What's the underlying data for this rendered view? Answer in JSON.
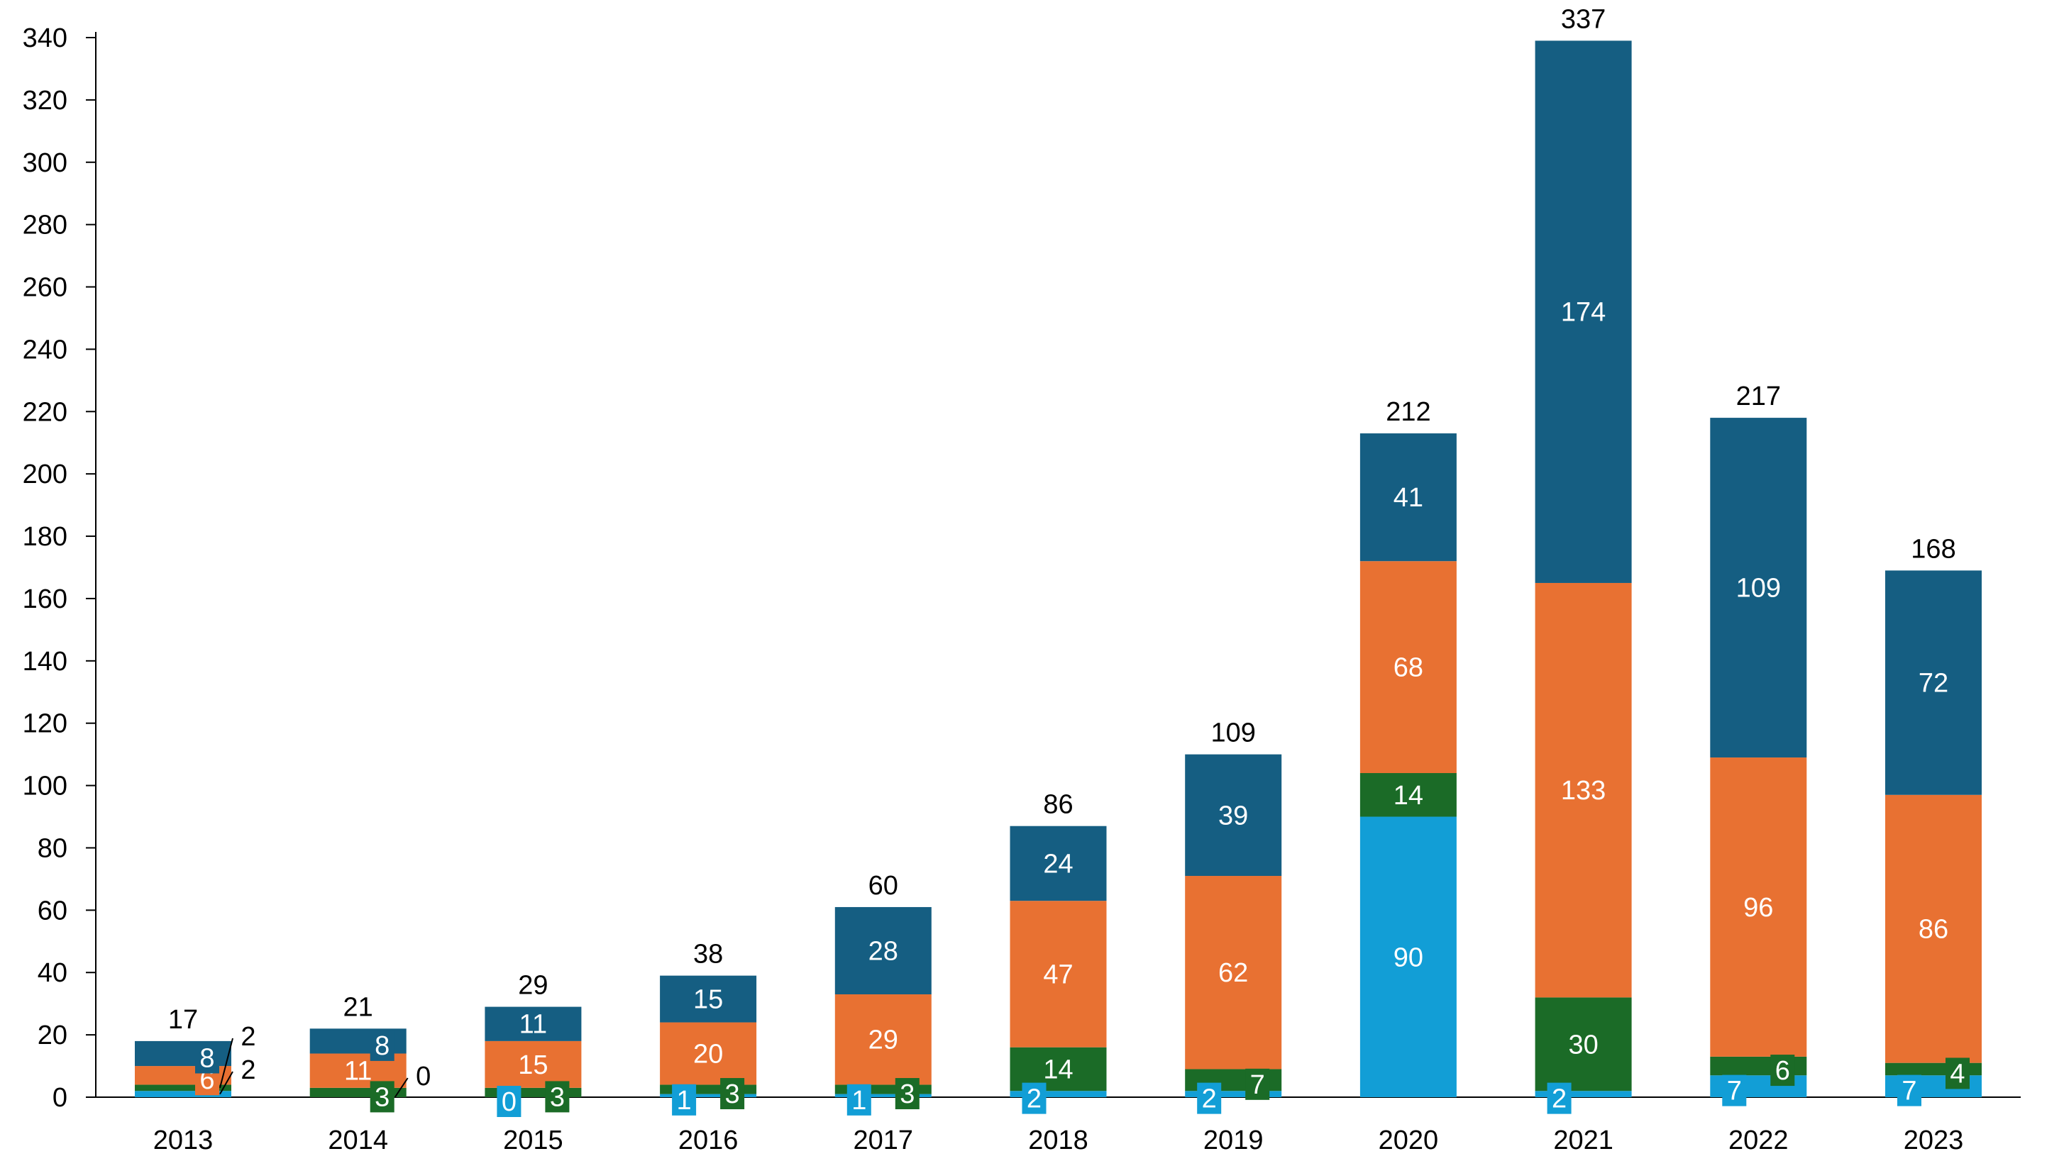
{
  "chart_data": {
    "type": "bar",
    "stacked": true,
    "title": "",
    "xlabel": "",
    "ylabel": "",
    "legend": "none",
    "grid": false,
    "categories": [
      "2013",
      "2014",
      "2015",
      "2016",
      "2017",
      "2018",
      "2019",
      "2020",
      "2021",
      "2022",
      "2023"
    ],
    "ylim": [
      0,
      340
    ],
    "yticks": [
      "0",
      "20",
      "40",
      "60",
      "80",
      "100",
      "120",
      "140",
      "160",
      "180",
      "200",
      "220",
      "240",
      "260",
      "280",
      "300",
      "320",
      "340"
    ],
    "ytick_values": [
      0,
      20,
      40,
      60,
      80,
      100,
      120,
      140,
      160,
      180,
      200,
      220,
      240,
      260,
      280,
      300,
      320,
      340
    ],
    "series": [
      {
        "name": "Light blue",
        "color": "#129ed6",
        "values": [
          2,
          0,
          0,
          1,
          1,
          2,
          2,
          90,
          2,
          7,
          7
        ]
      },
      {
        "name": "Dark green",
        "color": "#1b6b27",
        "values": [
          2,
          3,
          3,
          3,
          3,
          14,
          7,
          14,
          30,
          6,
          4
        ]
      },
      {
        "name": "Orange",
        "color": "#e87132",
        "values": [
          6,
          11,
          15,
          20,
          29,
          47,
          62,
          68,
          133,
          96,
          86
        ]
      },
      {
        "name": "Dark blue",
        "color": "#155e82",
        "values": [
          8,
          8,
          11,
          15,
          28,
          24,
          39,
          41,
          174,
          109,
          72
        ]
      }
    ],
    "totals": [
      17,
      21,
      29,
      38,
      60,
      86,
      109,
      212,
      337,
      217,
      168
    ],
    "axis_color": "#000000"
  }
}
